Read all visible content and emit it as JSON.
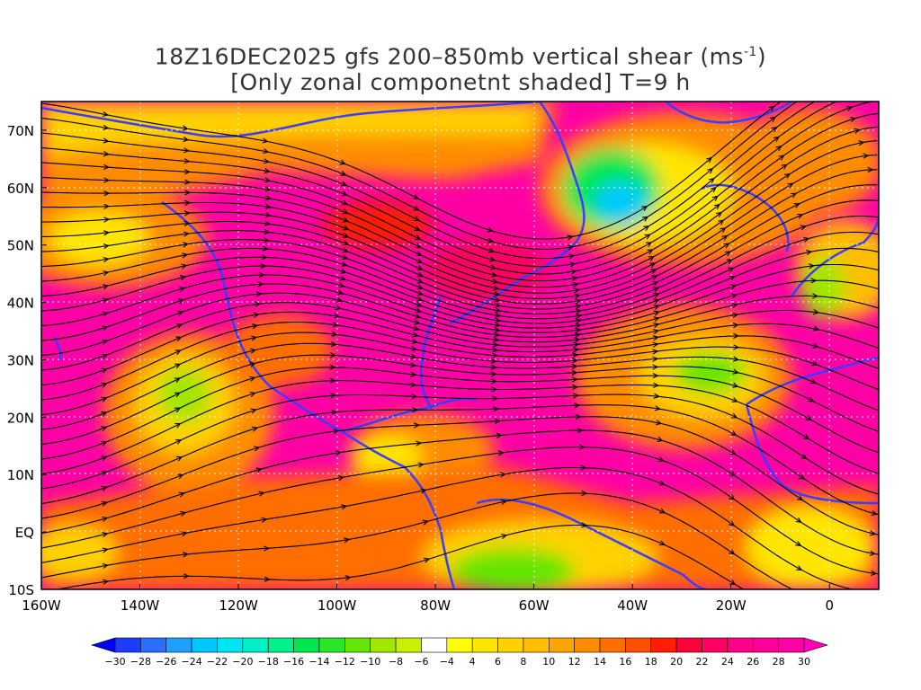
{
  "title": {
    "line1": "18Z16DEC2025 gfs 200–850mb vertical shear (ms",
    "line1_sup": "-1",
    "line1_end": ")",
    "line2": "[Only zonal componetnt shaded] T=9 h"
  },
  "map": {
    "lat_labels": [
      "70N",
      "60N",
      "50N",
      "40N",
      "30N",
      "20N",
      "10N",
      "EQ",
      "10S"
    ],
    "lon_labels": [
      "160W",
      "140W",
      "120W",
      "100W",
      "80W",
      "60W",
      "40W",
      "20W",
      "0"
    ],
    "lat_values": [
      70,
      60,
      50,
      40,
      30,
      20,
      10,
      0,
      -10
    ],
    "lon_values": [
      -160,
      -140,
      -120,
      -100,
      -80,
      -60,
      -40,
      -20,
      0
    ],
    "extent": {
      "lon_min": -160,
      "lon_max": 10,
      "lat_min": -10,
      "lat_max": 75
    }
  },
  "colorbar": {
    "labels": [
      "-30",
      "-28",
      "-26",
      "-24",
      "-22",
      "-20",
      "-18",
      "-16",
      "-14",
      "-12",
      "-10",
      "-8",
      "-6",
      "-4",
      "4",
      "6",
      "8",
      "10",
      "12",
      "14",
      "16",
      "18",
      "20",
      "22",
      "24",
      "26",
      "28",
      "30"
    ],
    "colors": [
      "#0000ff",
      "#1e3cff",
      "#2a6fff",
      "#1ea0ff",
      "#00c8ff",
      "#00e6f0",
      "#00f0c8",
      "#00f08c",
      "#00e650",
      "#28e628",
      "#64e600",
      "#a0e600",
      "#c8f000",
      "#ffffff",
      "#ffff00",
      "#ffe600",
      "#ffd200",
      "#ffbe00",
      "#ffa500",
      "#ff8c00",
      "#ff6e00",
      "#ff5000",
      "#ff1e00",
      "#ff003c",
      "#ff0064",
      "#ff0087",
      "#ff0096",
      "#ff00a5",
      "#ff00b4"
    ]
  }
}
